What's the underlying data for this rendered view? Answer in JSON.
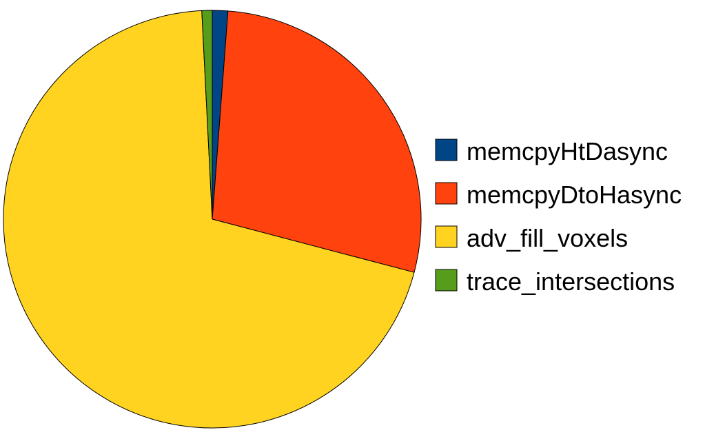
{
  "chart_data": {
    "type": "pie",
    "title": "",
    "legend_position": "right",
    "start_angle_deg": 0,
    "direction": "clockwise",
    "slices": [
      {
        "label": "memcpyHtDasync",
        "value": 1.2,
        "color": "#004586"
      },
      {
        "label": "memcpyDtoHasync",
        "value": 27.9,
        "color": "#ff420e"
      },
      {
        "label": "adv_fill_voxels",
        "value": 70.1,
        "color": "#ffd320"
      },
      {
        "label": "trace_intersections",
        "value": 0.8,
        "color": "#579d1c"
      }
    ]
  }
}
